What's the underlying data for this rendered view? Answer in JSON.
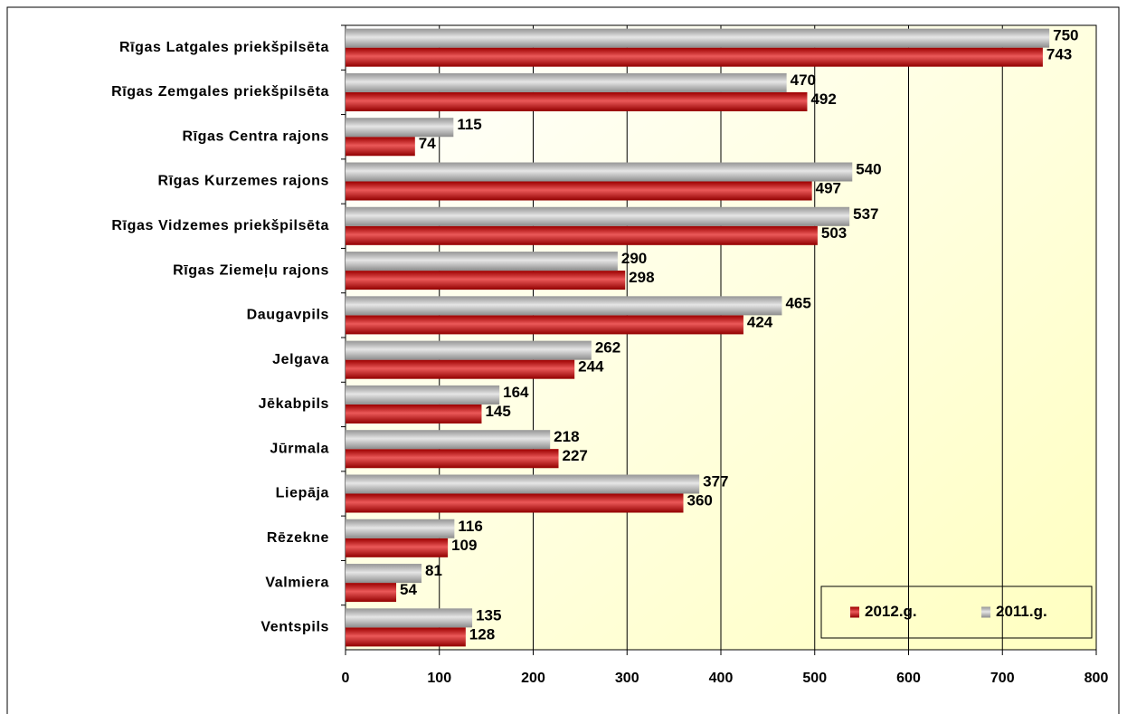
{
  "chart_data": {
    "type": "bar",
    "orientation": "horizontal",
    "categories": [
      "Rīgas Latgales priekšpilsēta",
      "Rīgas Zemgales priekšpilsēta",
      "Rīgas Centra rajons",
      "Rīgas Kurzemes rajons",
      "Rīgas Vidzemes priekšpilsēta",
      "Rīgas Ziemeļu rajons",
      "Daugavpils",
      "Jelgava",
      "Jēkabpils",
      "Jūrmala",
      "Liepāja",
      "Rēzekne",
      "Valmiera",
      "Ventspils"
    ],
    "series": [
      {
        "name": "2012.g.",
        "color": "#e00000",
        "values": [
          743,
          492,
          74,
          497,
          503,
          298,
          424,
          244,
          145,
          227,
          360,
          109,
          54,
          128
        ]
      },
      {
        "name": "2011.g.",
        "color": "#d8d8d8",
        "values": [
          750,
          470,
          115,
          540,
          537,
          290,
          465,
          262,
          164,
          218,
          377,
          116,
          81,
          135
        ]
      }
    ],
    "xlim": [
      0,
      800
    ],
    "xticks": [
      0,
      100,
      200,
      300,
      400,
      500,
      600,
      700,
      800
    ],
    "grid": true,
    "legend": "lower right"
  }
}
